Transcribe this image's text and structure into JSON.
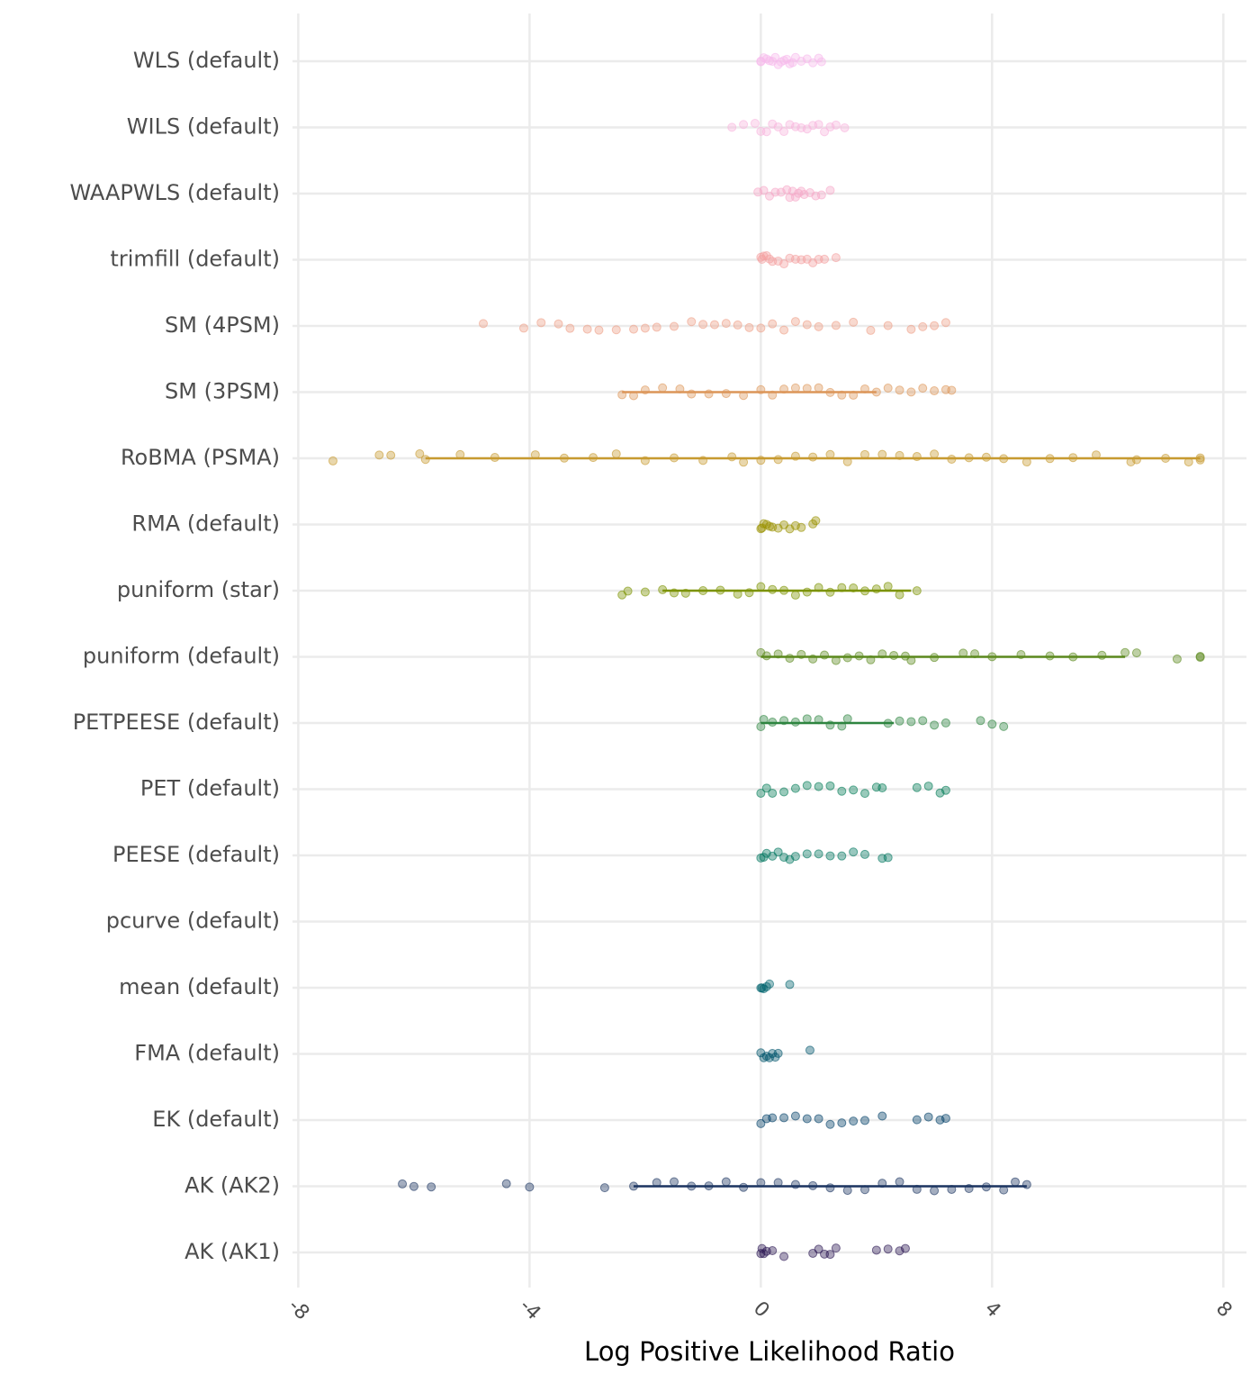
{
  "chart_data": {
    "type": "strip",
    "x_label": "Log Positive Likelihood Ratio",
    "xlim": [
      -8.1,
      8.4
    ],
    "xticks": [
      -8,
      -4,
      0,
      4,
      8
    ],
    "grid": true,
    "series": [
      {
        "name": "WLS (default)",
        "color": "#f7b9ec",
        "values": [
          0,
          0,
          0.05,
          0.1,
          0.15,
          0.2,
          0.25,
          0.3,
          0.35,
          0.4,
          0.45,
          0.5,
          0.55,
          0.6,
          0.7,
          0.8,
          0.9,
          1.0,
          1.05
        ]
      },
      {
        "name": "WILS (default)",
        "color": "#f8b4dd",
        "values": [
          -0.5,
          -0.3,
          -0.1,
          0,
          0.1,
          0.2,
          0.3,
          0.4,
          0.5,
          0.6,
          0.7,
          0.8,
          0.9,
          1.0,
          1.1,
          1.2,
          1.3,
          1.45
        ]
      },
      {
        "name": "WAAPWLS (default)",
        "color": "#f6a8c8",
        "values": [
          -0.05,
          0.05,
          0.15,
          0.25,
          0.35,
          0.45,
          0.5,
          0.55,
          0.6,
          0.65,
          0.7,
          0.75,
          0.85,
          0.95,
          1.05,
          1.2
        ]
      },
      {
        "name": "trimfill (default)",
        "color": "#f4a0a0",
        "values": [
          0,
          0.02,
          0.05,
          0.1,
          0.15,
          0.2,
          0.3,
          0.4,
          0.5,
          0.6,
          0.7,
          0.8,
          0.9,
          1.0,
          1.1,
          1.3
        ]
      },
      {
        "name": "SM (4PSM)",
        "color": "#eea088",
        "values": [
          -4.8,
          -4.1,
          -3.8,
          -3.5,
          -3.3,
          -3.0,
          -2.8,
          -2.5,
          -2.2,
          -2.0,
          -1.8,
          -1.5,
          -1.2,
          -1.0,
          -0.8,
          -0.6,
          -0.4,
          -0.2,
          0,
          0.2,
          0.4,
          0.6,
          0.8,
          1.0,
          1.3,
          1.6,
          1.9,
          2.2,
          2.6,
          2.8,
          3.0,
          3.2
        ]
      },
      {
        "name": "SM (3PSM)",
        "color": "#dd975a",
        "values": [
          -2.4,
          -2.2,
          -2.0,
          -1.7,
          -1.4,
          -1.2,
          -0.9,
          -0.6,
          -0.3,
          0,
          0.2,
          0.4,
          0.6,
          0.8,
          1.0,
          1.2,
          1.4,
          1.6,
          1.8,
          2.0,
          2.2,
          2.4,
          2.6,
          2.8,
          3.0,
          3.2,
          3.3
        ],
        "interval": [
          -2.4,
          2.0
        ]
      },
      {
        "name": "RoBMA (PSMA)",
        "color": "#c79a30",
        "values": [
          -7.4,
          -6.6,
          -6.4,
          -5.9,
          -5.8,
          -5.2,
          -4.6,
          -3.9,
          -3.4,
          -2.9,
          -2.5,
          -2.0,
          -1.5,
          -1.0,
          -0.5,
          -0.3,
          0,
          0.3,
          0.6,
          0.9,
          1.2,
          1.5,
          1.8,
          2.1,
          2.4,
          2.7,
          3.0,
          3.3,
          3.6,
          3.9,
          4.2,
          4.6,
          5.0,
          5.4,
          5.8,
          6.4,
          6.5,
          7.0,
          7.4,
          7.6,
          7.6
        ],
        "interval": [
          -5.8,
          7.6
        ]
      },
      {
        "name": "RMA (default)",
        "color": "#9a9200",
        "values": [
          0,
          0.02,
          0.05,
          0.1,
          0.15,
          0.2,
          0.3,
          0.4,
          0.5,
          0.6,
          0.7,
          0.9,
          0.95
        ]
      },
      {
        "name": "puniform (star)",
        "color": "#7c9300",
        "values": [
          -2.4,
          -2.3,
          -2.0,
          -1.7,
          -1.5,
          -1.3,
          -1.0,
          -0.7,
          -0.4,
          -0.2,
          0,
          0.2,
          0.4,
          0.6,
          0.8,
          1.0,
          1.2,
          1.4,
          1.6,
          1.8,
          2.0,
          2.2,
          2.4,
          2.7
        ],
        "interval": [
          -1.7,
          2.6
        ]
      },
      {
        "name": "puniform (default)",
        "color": "#5c8a1e",
        "values": [
          0,
          0.1,
          0.3,
          0.5,
          0.7,
          0.9,
          1.1,
          1.3,
          1.5,
          1.7,
          1.9,
          2.1,
          2.3,
          2.5,
          2.6,
          3.0,
          3.5,
          3.7,
          4.0,
          4.5,
          5.0,
          5.4,
          5.9,
          6.3,
          6.5,
          7.2,
          7.6,
          7.6
        ],
        "interval": [
          0,
          6.3
        ]
      },
      {
        "name": "PETPEESE (default)",
        "color": "#2e8540",
        "values": [
          0,
          0.05,
          0.2,
          0.4,
          0.6,
          0.8,
          1.0,
          1.2,
          1.4,
          1.5,
          2.2,
          2.4,
          2.6,
          2.8,
          3.0,
          3.2,
          3.8,
          4.0,
          4.2
        ],
        "interval": [
          0,
          2.3
        ]
      },
      {
        "name": "PET (default)",
        "color": "#007a55",
        "values": [
          0,
          0.1,
          0.2,
          0.4,
          0.6,
          0.8,
          1.0,
          1.2,
          1.4,
          1.6,
          1.8,
          2.0,
          2.1,
          2.7,
          2.9,
          3.1,
          3.2
        ]
      },
      {
        "name": "PEESE (default)",
        "color": "#00765f",
        "values": [
          0,
          0.05,
          0.1,
          0.2,
          0.3,
          0.4,
          0.5,
          0.6,
          0.8,
          1.0,
          1.2,
          1.4,
          1.6,
          1.8,
          2.1,
          2.2
        ]
      },
      {
        "name": "pcurve (default)",
        "color": "#006e68",
        "values": []
      },
      {
        "name": "mean (default)",
        "color": "#00646e",
        "values": [
          0,
          0.02,
          0.05,
          0.1,
          0.15,
          0.5
        ]
      },
      {
        "name": "FMA (default)",
        "color": "#00556c",
        "values": [
          0,
          0.05,
          0.1,
          0.15,
          0.2,
          0.25,
          0.3,
          0.85
        ]
      },
      {
        "name": "EK (default)",
        "color": "#003f67",
        "values": [
          0,
          0.1,
          0.2,
          0.4,
          0.6,
          0.8,
          1.0,
          1.2,
          1.4,
          1.6,
          1.8,
          2.1,
          2.7,
          2.9,
          3.1,
          3.2
        ]
      },
      {
        "name": "AK (AK2)",
        "color": "#1c3561",
        "values": [
          -6.2,
          -6.0,
          -5.7,
          -4.4,
          -4.0,
          -2.7,
          -2.2,
          -1.8,
          -1.5,
          -1.2,
          -0.9,
          -0.6,
          -0.3,
          0,
          0.3,
          0.6,
          0.9,
          1.2,
          1.5,
          1.8,
          2.1,
          2.4,
          2.7,
          3.0,
          3.3,
          3.6,
          3.9,
          4.2,
          4.4,
          4.6
        ],
        "interval": [
          -2.2,
          4.6
        ]
      },
      {
        "name": "AK (AK1)",
        "color": "#2a1652",
        "values": [
          0,
          0.02,
          0.05,
          0.1,
          0.2,
          0.4,
          0.9,
          1.0,
          1.1,
          1.2,
          1.3,
          2.0,
          2.2,
          2.4,
          2.5
        ]
      }
    ]
  }
}
